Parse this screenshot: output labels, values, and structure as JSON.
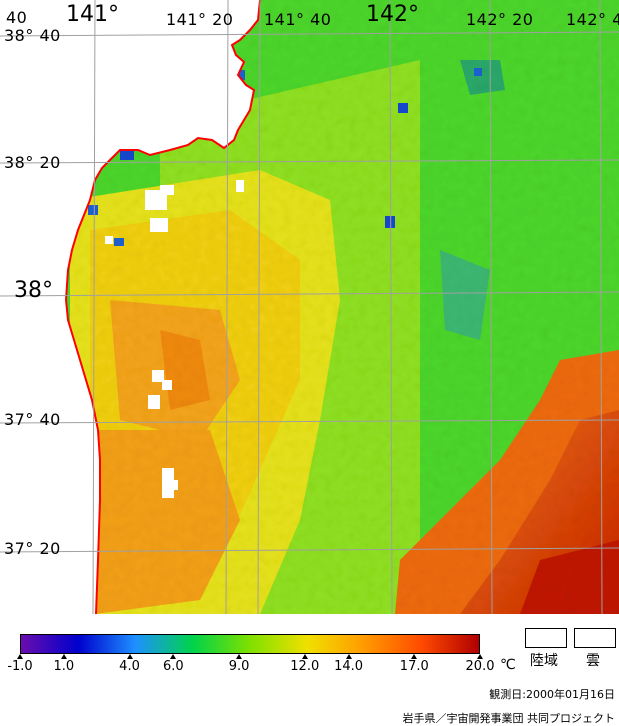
{
  "map": {
    "lon_labels": [
      {
        "text": "40",
        "size": "small"
      },
      {
        "text": "141°",
        "size": "big"
      },
      {
        "text": "141° 20",
        "size": "small"
      },
      {
        "text": "141° 40",
        "size": "small"
      },
      {
        "text": "142°",
        "size": "big"
      },
      {
        "text": "142° 20",
        "size": "small"
      },
      {
        "text": "142° 4",
        "size": "small"
      }
    ],
    "lat_labels": [
      {
        "text": "38° 40",
        "size": "small"
      },
      {
        "text": "38° 20",
        "size": "small"
      },
      {
        "text": "38°",
        "size": "big"
      },
      {
        "text": "37° 40",
        "size": "small"
      },
      {
        "text": "37° 20",
        "size": "small"
      }
    ]
  },
  "colorbar": {
    "ticks": [
      "-1.0",
      "1.0",
      "4.0",
      "6.0",
      "9.0",
      "12.0",
      "14.0",
      "17.0",
      "20.0"
    ],
    "unit": "℃",
    "gradient_colors": [
      "#6a0dad",
      "#0000cd",
      "#1e90ff",
      "#00d34a",
      "#7fe000",
      "#f0e000",
      "#ff9a00",
      "#ff4a00",
      "#b00000"
    ]
  },
  "legend": {
    "land_label": "陸域",
    "cloud_label": "雲"
  },
  "footer": {
    "obs_date": "観測日:2000年01月16日",
    "credit": "岩手県／宇宙開発事業団  共同プロジェクト"
  },
  "colors": {
    "coastline": "#ff0000",
    "grid": "#a0a0a0",
    "land": "#ffffff"
  }
}
